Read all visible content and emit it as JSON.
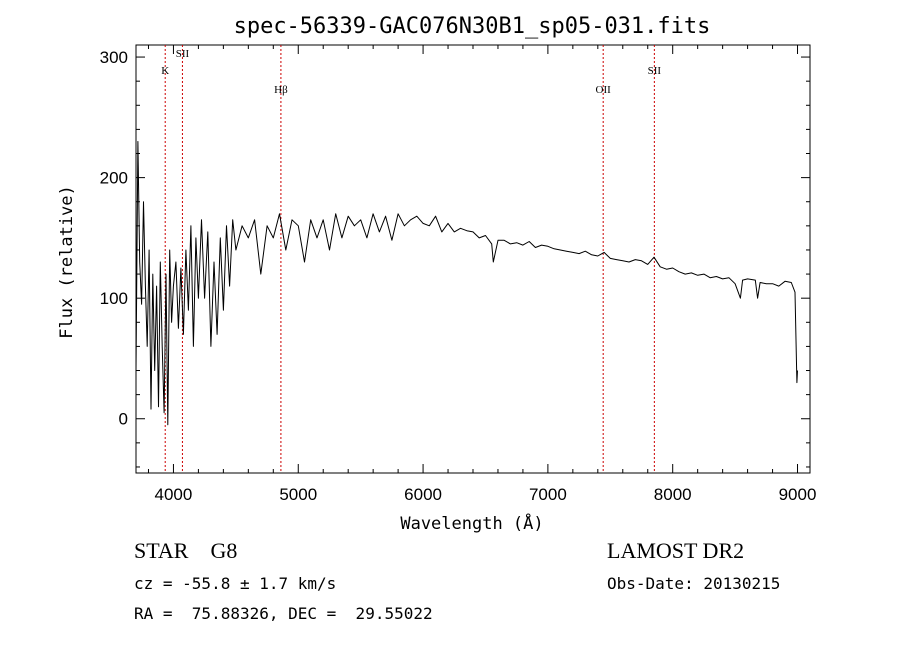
{
  "chart_data": {
    "type": "line",
    "title": "spec-56339-GAC076N30B1_sp05-031.fits",
    "xlabel": "Wavelength (Å)",
    "ylabel": "Flux (relative)",
    "xlim": [
      3700,
      9100
    ],
    "ylim": [
      -45,
      310
    ],
    "x_ticks": [
      4000,
      5000,
      6000,
      7000,
      8000,
      9000
    ],
    "y_ticks": [
      0,
      100,
      200,
      300
    ],
    "grid": false,
    "line_color": "#000000",
    "marker_color": "#cc0000",
    "line_markers": [
      {
        "label": "K",
        "x": 3934
      },
      {
        "label": "SII",
        "x": 4072
      },
      {
        "label": "Hβ",
        "x": 4861
      },
      {
        "label": "OII",
        "x": 7443
      },
      {
        "label": "SII",
        "x": 7853
      }
    ],
    "series": [
      {
        "x": [
          3700,
          3715,
          3730,
          3745,
          3760,
          3775,
          3790,
          3805,
          3820,
          3835,
          3850,
          3865,
          3880,
          3895,
          3910,
          3925,
          3940,
          3955,
          3970,
          3985,
          4000,
          4020,
          4040,
          4060,
          4080,
          4100,
          4120,
          4140,
          4160,
          4180,
          4200,
          4225,
          4250,
          4275,
          4300,
          4325,
          4350,
          4375,
          4400,
          4425,
          4450,
          4475,
          4500,
          4550,
          4600,
          4650,
          4700,
          4750,
          4800,
          4850,
          4900,
          4950,
          5000,
          5050,
          5100,
          5150,
          5200,
          5250,
          5300,
          5350,
          5400,
          5450,
          5500,
          5550,
          5600,
          5650,
          5700,
          5750,
          5800,
          5850,
          5900,
          5950,
          6000,
          6050,
          6100,
          6150,
          6200,
          6250,
          6300,
          6350,
          6400,
          6450,
          6500,
          6550,
          6563,
          6600,
          6650,
          6700,
          6750,
          6800,
          6850,
          6900,
          6950,
          7000,
          7050,
          7100,
          7150,
          7200,
          7250,
          7300,
          7350,
          7400,
          7450,
          7500,
          7550,
          7600,
          7650,
          7700,
          7750,
          7800,
          7850,
          7900,
          7950,
          8000,
          8050,
          8100,
          8150,
          8200,
          8250,
          8300,
          8350,
          8400,
          8450,
          8500,
          8542,
          8560,
          8600,
          8662,
          8680,
          8700,
          8750,
          8800,
          8850,
          8900,
          8950,
          8980,
          8995,
          9000
        ],
        "y": [
          40,
          230,
          130,
          95,
          180,
          110,
          60,
          140,
          8,
          120,
          40,
          110,
          10,
          130,
          60,
          5,
          120,
          -5,
          140,
          80,
          110,
          130,
          75,
          125,
          70,
          140,
          90,
          160,
          60,
          150,
          100,
          165,
          100,
          155,
          60,
          130,
          70,
          150,
          90,
          160,
          110,
          165,
          140,
          160,
          150,
          165,
          120,
          160,
          150,
          170,
          140,
          165,
          160,
          130,
          165,
          150,
          165,
          140,
          170,
          150,
          168,
          160,
          165,
          150,
          170,
          155,
          168,
          148,
          170,
          160,
          165,
          168,
          162,
          160,
          168,
          155,
          162,
          155,
          158,
          156,
          155,
          150,
          152,
          145,
          130,
          148,
          148,
          145,
          146,
          144,
          147,
          142,
          144,
          143,
          141,
          140,
          139,
          138,
          137,
          139,
          136,
          135,
          138,
          133,
          132,
          131,
          130,
          132,
          131,
          128,
          134,
          126,
          124,
          125,
          122,
          120,
          121,
          119,
          120,
          117,
          118,
          116,
          117,
          112,
          100,
          115,
          116,
          115,
          100,
          113,
          112,
          112,
          110,
          114,
          113,
          105,
          30,
          40
        ]
      }
    ]
  },
  "info": {
    "left_line1": "STAR    G8",
    "left_line2": "cz = -55.8 ± 1.7 km/s",
    "left_line3": "RA =  75.88326, DEC =  29.55022",
    "right_line1": "LAMOST DR2",
    "right_line2": "Obs-Date: 20130215"
  }
}
